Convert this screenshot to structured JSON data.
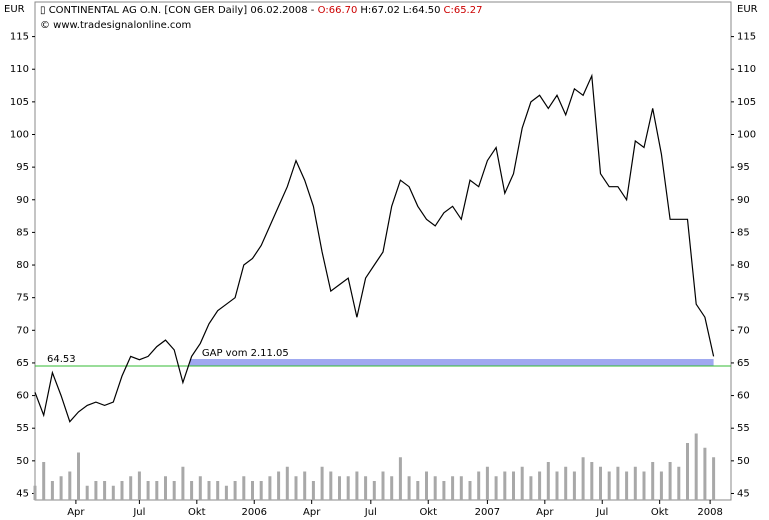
{
  "chart_data": {
    "type": "line",
    "title": "CONTINENTAL AG O.N. [CON GER  Daily] 06.02.2008 -",
    "ohlc": [
      "O:66.70",
      "H:67.02",
      "L:64.50",
      "C:65.27"
    ],
    "subtitle": "© www.tradesignalonline.com",
    "y_label_left": "EUR",
    "y_label_right": "EUR",
    "color": "#000000",
    "xlim": [
      0,
      80
    ],
    "xticks": [
      {
        "value": 4.7,
        "label": "Apr"
      },
      {
        "value": 12,
        "label": "Jul"
      },
      {
        "value": 18.6,
        "label": "Okt"
      },
      {
        "value": 25.2,
        "label": "2006"
      },
      {
        "value": 31.8,
        "label": "Apr"
      },
      {
        "value": 38.6,
        "label": "Jul"
      },
      {
        "value": 45.2,
        "label": "Okt"
      },
      {
        "value": 52,
        "label": "2007"
      },
      {
        "value": 58.6,
        "label": "Apr"
      },
      {
        "value": 65.2,
        "label": "Jul"
      },
      {
        "value": 71.8,
        "label": "Okt"
      },
      {
        "value": 77.6,
        "label": "2008"
      }
    ],
    "ylim": [
      44,
      120.3
    ],
    "yticks": [
      45,
      50,
      55,
      60,
      65,
      70,
      75,
      80,
      85,
      90,
      95,
      100,
      105,
      110,
      115
    ],
    "values": [
      60.5,
      57,
      63.5,
      60,
      56,
      57.5,
      58.5,
      59,
      58.5,
      59,
      63,
      66,
      65.5,
      66,
      67.5,
      68.5,
      67,
      62,
      66,
      68,
      71,
      73,
      74,
      75,
      80,
      81,
      83,
      86,
      89,
      92,
      96,
      93,
      89,
      82,
      76,
      77,
      78,
      72,
      78,
      80,
      82,
      89,
      93,
      92,
      89,
      87,
      86,
      88,
      89,
      87,
      93,
      92,
      96,
      98,
      91,
      94,
      101,
      105,
      106,
      104,
      106,
      103,
      107,
      106,
      109,
      94,
      92,
      92,
      90,
      99,
      98,
      104,
      97,
      87,
      87,
      87,
      74,
      72,
      66
    ],
    "volume": {
      "color": "#a8a8a8",
      "lim": [
        0,
        100
      ],
      "values": [
        15,
        40,
        20,
        25,
        30,
        50,
        15,
        20,
        20,
        15,
        20,
        25,
        30,
        20,
        20,
        25,
        20,
        35,
        20,
        25,
        20,
        20,
        15,
        20,
        25,
        20,
        20,
        25,
        30,
        35,
        25,
        30,
        20,
        35,
        30,
        25,
        25,
        30,
        25,
        20,
        30,
        25,
        45,
        25,
        20,
        30,
        25,
        20,
        25,
        25,
        20,
        30,
        35,
        25,
        30,
        30,
        35,
        25,
        30,
        40,
        30,
        35,
        30,
        45,
        40,
        35,
        30,
        35,
        30,
        35,
        30,
        40,
        30,
        40,
        35,
        60,
        70,
        55,
        45
      ]
    },
    "support": {
      "value": 64.53,
      "label": "64.53",
      "color": "#33bb33"
    },
    "gap": {
      "label": "GAP vom 2.11.05",
      "start": 17.8,
      "from": 64.53,
      "to": 65.6,
      "color": "#9fa8f0",
      "text_color": "#000099"
    }
  }
}
